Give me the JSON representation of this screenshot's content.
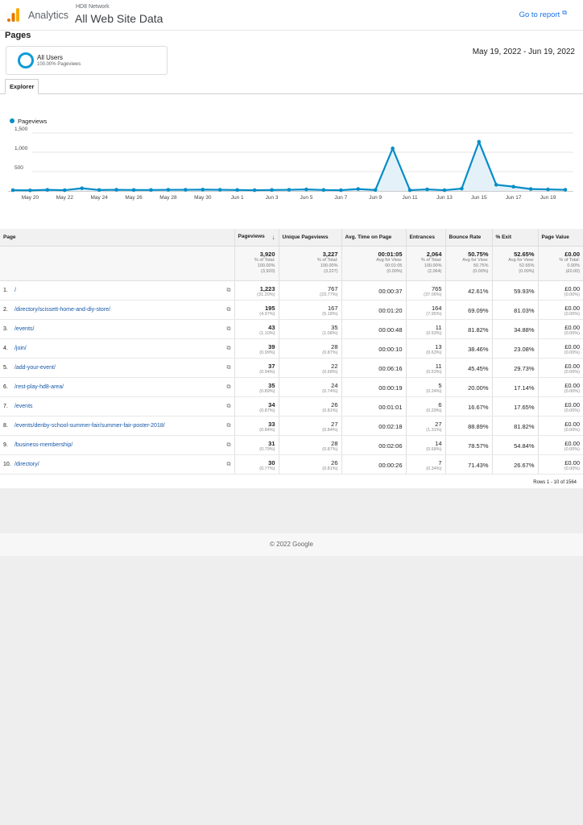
{
  "header": {
    "app_name": "Analytics",
    "account": "HD8 Network",
    "property": "All Web Site Data",
    "go_to_report": "Go to report",
    "logo_colors": [
      "#f9ab00",
      "#e37400"
    ]
  },
  "page_title": "Pages",
  "segment": {
    "name": "All Users",
    "sub": "100.00% Pageviews",
    "color": "#0f9bd7"
  },
  "date_range": "May 19, 2022 - Jun 19, 2022",
  "tabs": [
    {
      "label": "Explorer"
    }
  ],
  "chart_data": {
    "type": "area",
    "series": [
      {
        "name": "Pageviews",
        "color": "#058dc7",
        "values": [
          20,
          15,
          28,
          20,
          70,
          25,
          30,
          25,
          25,
          30,
          30,
          35,
          30,
          25,
          20,
          25,
          30,
          40,
          25,
          20,
          50,
          25,
          1100,
          20,
          40,
          20,
          60,
          1270,
          160,
          110,
          50,
          40,
          30
        ]
      }
    ],
    "x_tick_labels": [
      "May 20",
      "May 22",
      "May 24",
      "May 26",
      "May 28",
      "May 30",
      "Jun 1",
      "Jun 3",
      "Jun 5",
      "Jun 7",
      "Jun 9",
      "Jun 11",
      "Jun 13",
      "Jun 15",
      "Jun 17",
      "Jun 19"
    ],
    "y_tick_labels": [
      "1,500",
      "1,000",
      "500"
    ],
    "ylim": [
      0,
      1500
    ],
    "grid": true
  },
  "table": {
    "headers": [
      "Page",
      "Pageviews",
      "Unique Pageviews",
      "Avg. Time on Page",
      "Entrances",
      "Bounce Rate",
      "% Exit",
      "Page Value"
    ],
    "sort_icon": "sort-down-arrow",
    "totals": [
      {
        "main": "3,920",
        "sub1": "% of Total:",
        "sub2": "100.00%",
        "sub3": "(3,920)"
      },
      {
        "main": "3,227",
        "sub1": "% of Total:",
        "sub2": "100.00%",
        "sub3": "(3,227)"
      },
      {
        "main": "00:01:05",
        "sub1": "Avg for View:",
        "sub2": "00:01:05",
        "sub3": "(0.00%)"
      },
      {
        "main": "2,064",
        "sub1": "% of Total:",
        "sub2": "100.00%",
        "sub3": "(2,064)"
      },
      {
        "main": "50.75%",
        "sub1": "Avg for View:",
        "sub2": "50.75%",
        "sub3": "(0.00%)"
      },
      {
        "main": "52.65%",
        "sub1": "Avg for View:",
        "sub2": "52.65%",
        "sub3": "(0.00%)"
      },
      {
        "main": "£0.00",
        "sub1": "% of Total:",
        "sub2": "0.00%",
        "sub3": "(£0.00)"
      }
    ],
    "rows": [
      {
        "num": "1.",
        "page": "/",
        "pv": "1,223",
        "pv_pct": "(31.20%)",
        "upv": "767",
        "upv_pct": "(23.77%)",
        "time": "00:00:37",
        "ent": "765",
        "ent_pct": "(37.06%)",
        "bounce": "42.61%",
        "exit": "59.93%",
        "value": "£0.00",
        "value_pct": "(0.00%)"
      },
      {
        "num": "2.",
        "page": "/directory/scissett-home-and-diy-store/",
        "pv": "195",
        "pv_pct": "(4.97%)",
        "upv": "167",
        "upv_pct": "(5.18%)",
        "time": "00:01:20",
        "ent": "164",
        "ent_pct": "(7.95%)",
        "bounce": "69.09%",
        "exit": "81.03%",
        "value": "£0.00",
        "value_pct": "(0.00%)"
      },
      {
        "num": "3.",
        "page": "/events/",
        "pv": "43",
        "pv_pct": "(1.10%)",
        "upv": "35",
        "upv_pct": "(1.08%)",
        "time": "00:00:48",
        "ent": "11",
        "ent_pct": "(0.53%)",
        "bounce": "81.82%",
        "exit": "34.88%",
        "value": "£0.00",
        "value_pct": "(0.00%)"
      },
      {
        "num": "4.",
        "page": "/join/",
        "pv": "39",
        "pv_pct": "(0.99%)",
        "upv": "28",
        "upv_pct": "(0.87%)",
        "time": "00:00:10",
        "ent": "13",
        "ent_pct": "(0.63%)",
        "bounce": "38.46%",
        "exit": "23.08%",
        "value": "£0.00",
        "value_pct": "(0.00%)"
      },
      {
        "num": "5.",
        "page": "/add-your-event/",
        "pv": "37",
        "pv_pct": "(0.94%)",
        "upv": "22",
        "upv_pct": "(0.68%)",
        "time": "00:06:16",
        "ent": "11",
        "ent_pct": "(0.53%)",
        "bounce": "45.45%",
        "exit": "29.73%",
        "value": "£0.00",
        "value_pct": "(0.00%)"
      },
      {
        "num": "6.",
        "page": "/rest-play-hd8-area/",
        "pv": "35",
        "pv_pct": "(0.89%)",
        "upv": "24",
        "upv_pct": "(0.74%)",
        "time": "00:00:19",
        "ent": "5",
        "ent_pct": "(0.24%)",
        "bounce": "20.00%",
        "exit": "17.14%",
        "value": "£0.00",
        "value_pct": "(0.00%)"
      },
      {
        "num": "7.",
        "page": "/events",
        "pv": "34",
        "pv_pct": "(0.87%)",
        "upv": "26",
        "upv_pct": "(0.81%)",
        "time": "00:01:01",
        "ent": "6",
        "ent_pct": "(0.29%)",
        "bounce": "16.67%",
        "exit": "17.65%",
        "value": "£0.00",
        "value_pct": "(0.00%)"
      },
      {
        "num": "8.",
        "page": "/events/denby-school-summer-fair/summer-fair-poster-2018/",
        "pv": "33",
        "pv_pct": "(0.84%)",
        "upv": "27",
        "upv_pct": "(0.84%)",
        "time": "00:02:18",
        "ent": "27",
        "ent_pct": "(1.31%)",
        "bounce": "88.89%",
        "exit": "81.82%",
        "value": "£0.00",
        "value_pct": "(0.00%)"
      },
      {
        "num": "9.",
        "page": "/business-membership/",
        "pv": "31",
        "pv_pct": "(0.79%)",
        "upv": "28",
        "upv_pct": "(0.87%)",
        "time": "00:02:06",
        "ent": "14",
        "ent_pct": "(0.68%)",
        "bounce": "78.57%",
        "exit": "54.84%",
        "value": "£0.00",
        "value_pct": "(0.00%)"
      },
      {
        "num": "10.",
        "page": "/directory/",
        "pv": "30",
        "pv_pct": "(0.77%)",
        "upv": "26",
        "upv_pct": "(0.81%)",
        "time": "00:00:26",
        "ent": "7",
        "ent_pct": "(0.34%)",
        "bounce": "71.43%",
        "exit": "26.67%",
        "value": "£0.00",
        "value_pct": "(0.00%)"
      }
    ],
    "rows_info": "Rows 1 - 10 of 1564"
  },
  "footer": "© 2022 Google"
}
